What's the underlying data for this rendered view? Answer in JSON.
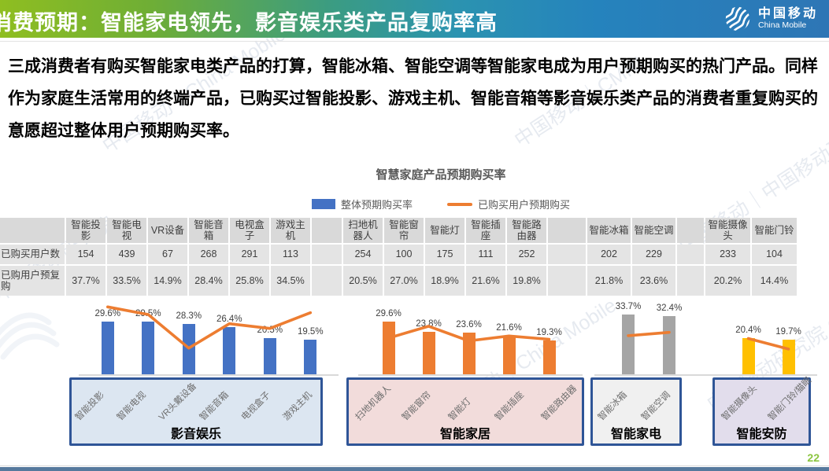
{
  "header": {
    "title": "消费预期：智能家电领先，影音娱乐类产品复购率高",
    "logo": {
      "zh": "中国移动",
      "en": "China Mobile"
    }
  },
  "intro": "三成消费者有购买智能家电类产品的打算，智能冰箱、智能空调等智能家电成为用户预期购买的热门产品。同样作为家庭生活常用的终端产品，已购买过智能投影、游戏主机、智能音箱等影音娱乐类产品的消费者重复购买的意愿超过整体用户预期购买率。",
  "chart": {
    "title": "智慧家庭产品预期购买率",
    "legend": [
      {
        "label": "整体预期购买率",
        "color": "#4472C4",
        "type": "bar"
      },
      {
        "label": "已购买用户预期购买",
        "color": "#ED7D31",
        "type": "line"
      }
    ]
  },
  "table": {
    "row_labels": [
      "已购买用户数",
      "已购用户预复购"
    ]
  },
  "chart_data": {
    "type": "bar+line",
    "title": "智慧家庭产品预期购买率",
    "unit": "%",
    "bar_series": "整体预期购买率",
    "line_series": "已购买用户预期购买",
    "bar_color_legend": "#4472C4",
    "line_color": "#ED7D31",
    "groups": [
      {
        "name": "影音娱乐",
        "box_color": "#DCE6F1",
        "bar_color": "#4472C4",
        "products": [
          {
            "label": "智能投影",
            "axis_label": "智能投影",
            "purchased_users": 154,
            "overall_expected": 29.6,
            "repurchase_expected": 37.7
          },
          {
            "label": "智能电视",
            "axis_label": "智能电视",
            "purchased_users": 439,
            "overall_expected": 29.5,
            "repurchase_expected": 33.5
          },
          {
            "label": "VR设备",
            "axis_label": "VR头戴设备",
            "purchased_users": 67,
            "overall_expected": 28.3,
            "repurchase_expected": 14.9
          },
          {
            "label": "智能音箱",
            "axis_label": "智能音箱",
            "purchased_users": 268,
            "overall_expected": 26.4,
            "repurchase_expected": 28.4
          },
          {
            "label": "电视盒子",
            "axis_label": "电视盒子",
            "purchased_users": 291,
            "overall_expected": 20.5,
            "repurchase_expected": 25.8
          },
          {
            "label": "游戏主机",
            "axis_label": "游戏主机",
            "purchased_users": 113,
            "overall_expected": 19.5,
            "repurchase_expected": 34.5
          }
        ]
      },
      {
        "name": "智能家居",
        "box_color": "#F2DCDB",
        "bar_color": "#ED7D31",
        "products": [
          {
            "label": "扫地机器人",
            "axis_label": "扫地机器人",
            "purchased_users": 254,
            "overall_expected": 29.6,
            "repurchase_expected": 20.5
          },
          {
            "label": "智能窗帘",
            "axis_label": "智能窗帘",
            "purchased_users": 100,
            "overall_expected": 23.8,
            "repurchase_expected": 27.0
          },
          {
            "label": "智能灯",
            "axis_label": "智能灯",
            "purchased_users": 175,
            "overall_expected": 23.6,
            "repurchase_expected": 18.9
          },
          {
            "label": "智能插座",
            "axis_label": "智能插座",
            "purchased_users": 111,
            "overall_expected": 21.6,
            "repurchase_expected": 21.6
          },
          {
            "label": "智能路由器",
            "axis_label": "智能路由器",
            "purchased_users": 252,
            "overall_expected": 19.3,
            "repurchase_expected": 19.8
          }
        ]
      },
      {
        "name": "智能家电",
        "box_color": "#F0F0F0",
        "bar_color": "#A5A5A5",
        "products": [
          {
            "label": "智能冰箱",
            "axis_label": "智能冰箱",
            "purchased_users": 202,
            "overall_expected": 33.7,
            "repurchase_expected": 21.8
          },
          {
            "label": "智能空调",
            "axis_label": "智能空调",
            "purchased_users": 229,
            "overall_expected": 32.4,
            "repurchase_expected": 23.6
          }
        ]
      },
      {
        "name": "智能安防",
        "box_color": "#E2DDEC",
        "bar_color": "#FFC000",
        "products": [
          {
            "label": "智能摄像头",
            "axis_label": "智能摄像头",
            "purchased_users": 233,
            "overall_expected": 20.4,
            "repurchase_expected": 20.2
          },
          {
            "label": "智能门铃",
            "axis_label": "智能门铃/猫眼",
            "purchased_users": 104,
            "overall_expected": 19.7,
            "repurchase_expected": 14.4
          }
        ]
      }
    ]
  },
  "footer": {
    "page": "22"
  },
  "watermarks": [
    "中国移动｜China Mobile",
    "中国移动｜CMRI",
    "中国移动｜中国移动研究院",
    "中国移动研究院",
    "中国移动｜China Mobile",
    "中国移动研究院 CMRI"
  ]
}
